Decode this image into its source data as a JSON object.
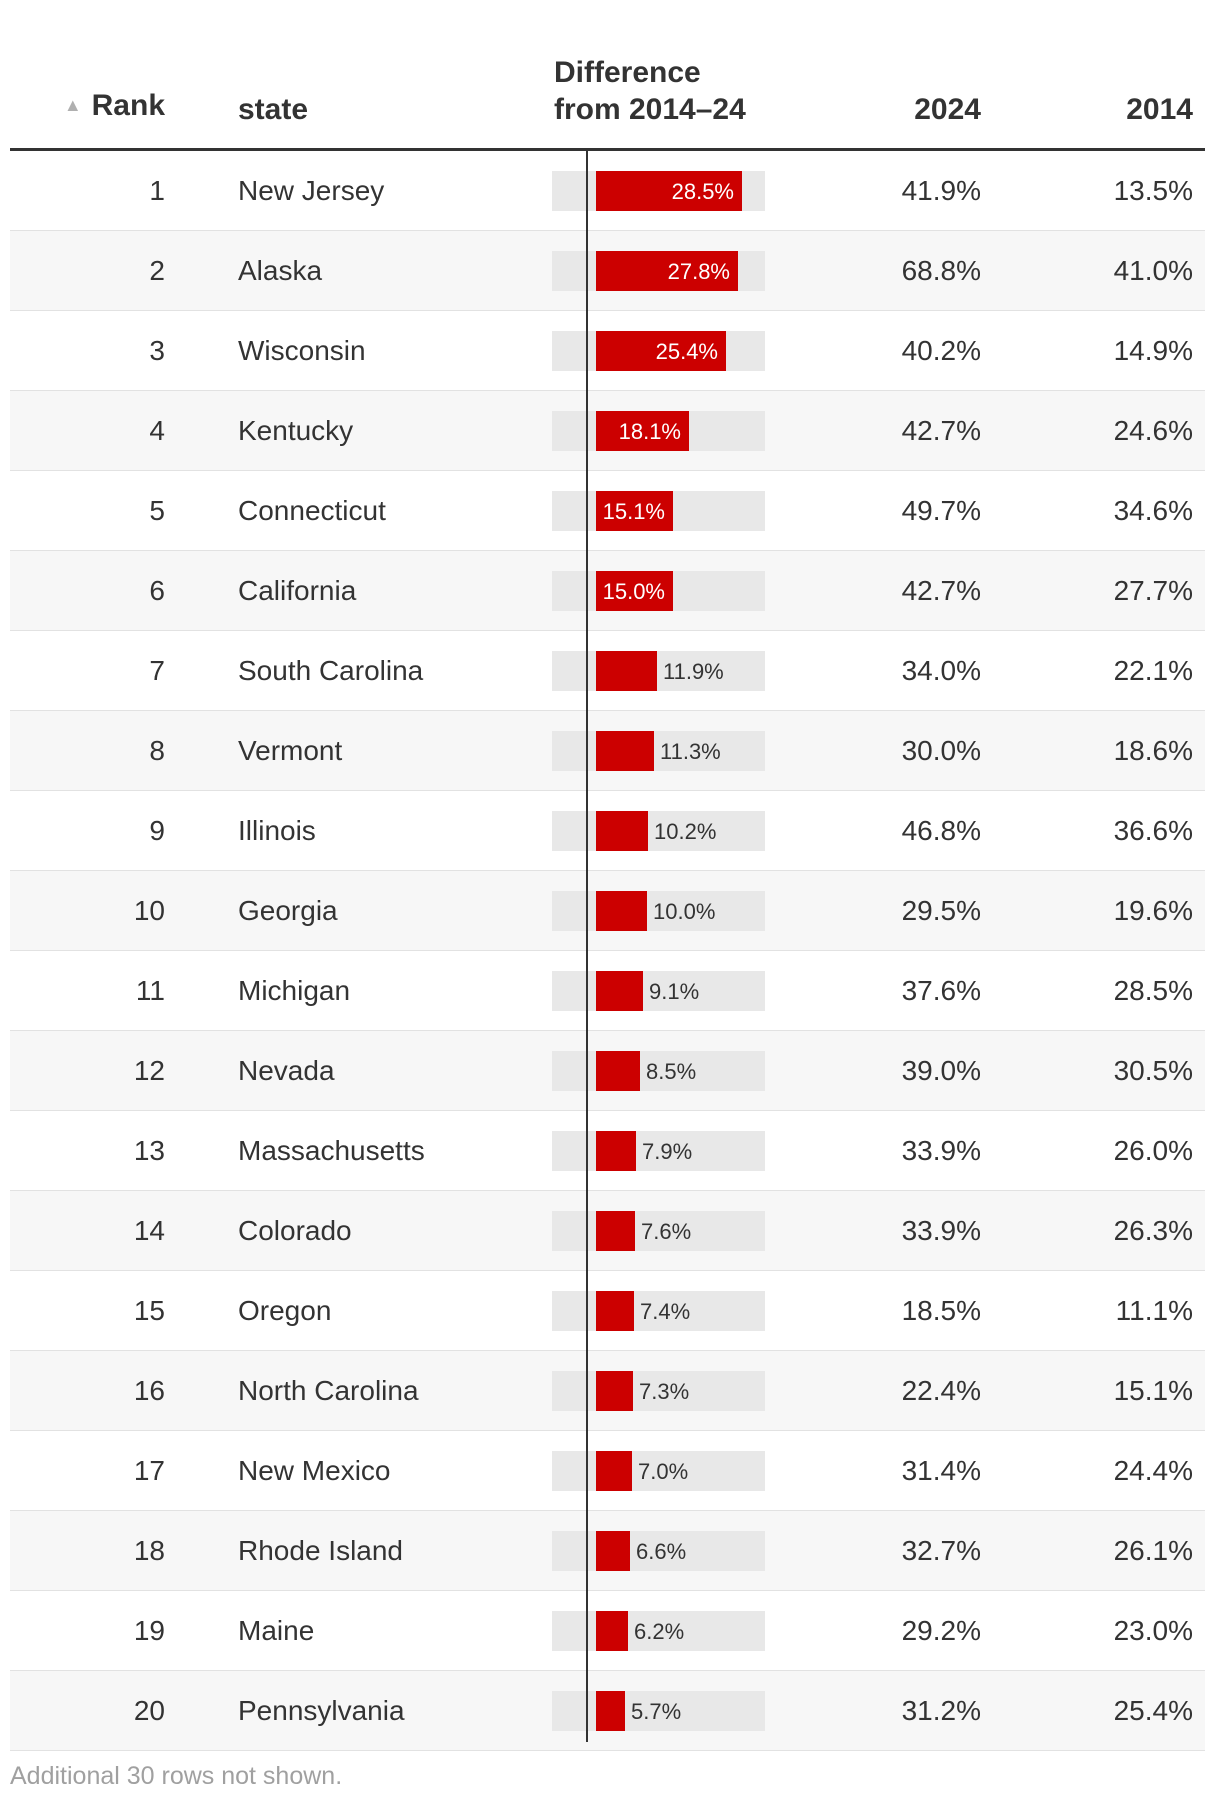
{
  "table": {
    "columns": {
      "rank": "Rank",
      "state": "state",
      "diff_line1": "Difference",
      "diff_line2": "from 2014–24",
      "y2024": "2024",
      "y2014": "2014"
    },
    "sort_indicator": "▲",
    "footnote": "Additional 30 rows not shown."
  },
  "colors": {
    "bar": "#cc0000",
    "bar_track": "#e8e8e8"
  },
  "chart_data": {
    "type": "table",
    "bar_max": 33,
    "rows": [
      {
        "rank": "1",
        "state": "New Jersey",
        "diff": 28.5,
        "diff_label": "28.5%",
        "y2024": "41.9%",
        "y2014": "13.5%"
      },
      {
        "rank": "2",
        "state": "Alaska",
        "diff": 27.8,
        "diff_label": "27.8%",
        "y2024": "68.8%",
        "y2014": "41.0%"
      },
      {
        "rank": "3",
        "state": "Wisconsin",
        "diff": 25.4,
        "diff_label": "25.4%",
        "y2024": "40.2%",
        "y2014": "14.9%"
      },
      {
        "rank": "4",
        "state": "Kentucky",
        "diff": 18.1,
        "diff_label": "18.1%",
        "y2024": "42.7%",
        "y2014": "24.6%"
      },
      {
        "rank": "5",
        "state": "Connecticut",
        "diff": 15.1,
        "diff_label": "15.1%",
        "y2024": "49.7%",
        "y2014": "34.6%"
      },
      {
        "rank": "6",
        "state": "California",
        "diff": 15.0,
        "diff_label": "15.0%",
        "y2024": "42.7%",
        "y2014": "27.7%"
      },
      {
        "rank": "7",
        "state": "South Carolina",
        "diff": 11.9,
        "diff_label": "11.9%",
        "y2024": "34.0%",
        "y2014": "22.1%"
      },
      {
        "rank": "8",
        "state": "Vermont",
        "diff": 11.3,
        "diff_label": "11.3%",
        "y2024": "30.0%",
        "y2014": "18.6%"
      },
      {
        "rank": "9",
        "state": "Illinois",
        "diff": 10.2,
        "diff_label": "10.2%",
        "y2024": "46.8%",
        "y2014": "36.6%"
      },
      {
        "rank": "10",
        "state": "Georgia",
        "diff": 10.0,
        "diff_label": "10.0%",
        "y2024": "29.5%",
        "y2014": "19.6%"
      },
      {
        "rank": "11",
        "state": "Michigan",
        "diff": 9.1,
        "diff_label": "9.1%",
        "y2024": "37.6%",
        "y2014": "28.5%"
      },
      {
        "rank": "12",
        "state": "Nevada",
        "diff": 8.5,
        "diff_label": "8.5%",
        "y2024": "39.0%",
        "y2014": "30.5%"
      },
      {
        "rank": "13",
        "state": "Massachusetts",
        "diff": 7.9,
        "diff_label": "7.9%",
        "y2024": "33.9%",
        "y2014": "26.0%"
      },
      {
        "rank": "14",
        "state": "Colorado",
        "diff": 7.6,
        "diff_label": "7.6%",
        "y2024": "33.9%",
        "y2014": "26.3%"
      },
      {
        "rank": "15",
        "state": "Oregon",
        "diff": 7.4,
        "diff_label": "7.4%",
        "y2024": "18.5%",
        "y2014": "11.1%"
      },
      {
        "rank": "16",
        "state": "North Carolina",
        "diff": 7.3,
        "diff_label": "7.3%",
        "y2024": "22.4%",
        "y2014": "15.1%"
      },
      {
        "rank": "17",
        "state": "New Mexico",
        "diff": 7.0,
        "diff_label": "7.0%",
        "y2024": "31.4%",
        "y2014": "24.4%"
      },
      {
        "rank": "18",
        "state": "Rhode Island",
        "diff": 6.6,
        "diff_label": "6.6%",
        "y2024": "32.7%",
        "y2014": "26.1%"
      },
      {
        "rank": "19",
        "state": "Maine",
        "diff": 6.2,
        "diff_label": "6.2%",
        "y2024": "29.2%",
        "y2014": "23.0%"
      },
      {
        "rank": "20",
        "state": "Pennsylvania",
        "diff": 5.7,
        "diff_label": "5.7%",
        "y2024": "31.2%",
        "y2014": "25.4%"
      }
    ]
  }
}
